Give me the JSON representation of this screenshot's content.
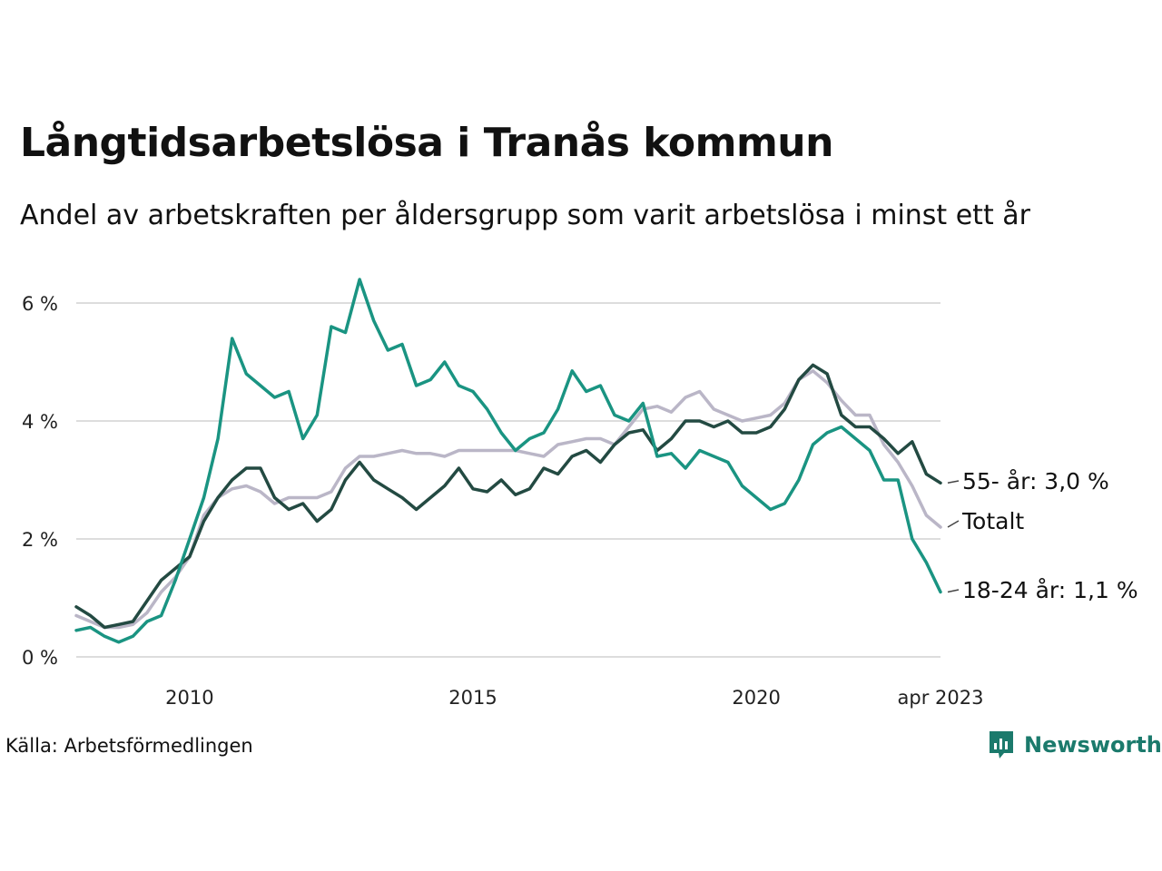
{
  "title": "Långtidsarbetslösa i Tranås kommun",
  "subtitle": "Andel av arbetskraften per åldersgrupp som varit arbetslösa i minst ett år",
  "source": "Källa: Arbetsförmedlingen",
  "brand": {
    "name": "Newsworthy",
    "icon": "newsworthy-logo-icon",
    "color": "#1b7a6c"
  },
  "chart_data": {
    "type": "line",
    "title": "Långtidsarbetslösa i Tranås kommun",
    "subtitle": "Andel av arbetskraften per åldersgrupp som varit arbetslösa i minst ett år",
    "xlabel": "",
    "ylabel": "",
    "x_range": [
      2008.0,
      2023.25
    ],
    "ylim": [
      0,
      6.6
    ],
    "y_ticks": [
      0,
      2,
      4,
      6
    ],
    "y_tick_labels": [
      "0 %",
      "2 %",
      "4 %",
      "6 %"
    ],
    "x_ticks": [
      2010,
      2015,
      2020,
      2023.25
    ],
    "x_tick_labels": [
      "2010",
      "2015",
      "2020",
      "apr 2023"
    ],
    "grid": "horizontal",
    "legend": "direct labels at line ends (right)",
    "series": [
      {
        "name": "55- år",
        "end_label": "55- år: 3,0 %",
        "color": "#234a42",
        "x": [
          2008.0,
          2008.25,
          2008.5,
          2008.75,
          2009.0,
          2009.25,
          2009.5,
          2009.75,
          2010.0,
          2010.25,
          2010.5,
          2010.75,
          2011.0,
          2011.25,
          2011.5,
          2011.75,
          2012.0,
          2012.25,
          2012.5,
          2012.75,
          2013.0,
          2013.25,
          2013.5,
          2013.75,
          2014.0,
          2014.25,
          2014.5,
          2014.75,
          2015.0,
          2015.25,
          2015.5,
          2015.75,
          2016.0,
          2016.25,
          2016.5,
          2016.75,
          2017.0,
          2017.25,
          2017.5,
          2017.75,
          2018.0,
          2018.25,
          2018.5,
          2018.75,
          2019.0,
          2019.25,
          2019.5,
          2019.75,
          2020.0,
          2020.25,
          2020.5,
          2020.75,
          2021.0,
          2021.25,
          2021.5,
          2021.75,
          2022.0,
          2022.25,
          2022.5,
          2022.75,
          2023.0,
          2023.25
        ],
        "values": [
          0.85,
          0.7,
          0.5,
          0.55,
          0.6,
          0.95,
          1.3,
          1.5,
          1.7,
          2.3,
          2.7,
          3.0,
          3.2,
          3.2,
          2.7,
          2.5,
          2.6,
          2.3,
          2.5,
          3.0,
          3.3,
          3.0,
          2.85,
          2.7,
          2.5,
          2.7,
          2.9,
          3.2,
          2.85,
          2.8,
          3.0,
          2.75,
          2.85,
          3.2,
          3.1,
          3.4,
          3.5,
          3.3,
          3.6,
          3.8,
          3.85,
          3.5,
          3.7,
          4.0,
          4.0,
          3.9,
          4.0,
          3.8,
          3.8,
          3.9,
          4.2,
          4.7,
          4.95,
          4.8,
          4.1,
          3.9,
          3.9,
          3.7,
          3.45,
          3.65,
          3.1,
          2.95
        ]
      },
      {
        "name": "Totalt",
        "end_label": "Totalt",
        "color": "#bab6c7",
        "x": [
          2008.0,
          2008.25,
          2008.5,
          2008.75,
          2009.0,
          2009.25,
          2009.5,
          2009.75,
          2010.0,
          2010.25,
          2010.5,
          2010.75,
          2011.0,
          2011.25,
          2011.5,
          2011.75,
          2012.0,
          2012.25,
          2012.5,
          2012.75,
          2013.0,
          2013.25,
          2013.5,
          2013.75,
          2014.0,
          2014.25,
          2014.5,
          2014.75,
          2015.0,
          2015.25,
          2015.5,
          2015.75,
          2016.0,
          2016.25,
          2016.5,
          2016.75,
          2017.0,
          2017.25,
          2017.5,
          2017.75,
          2018.0,
          2018.25,
          2018.5,
          2018.75,
          2019.0,
          2019.25,
          2019.5,
          2019.75,
          2020.0,
          2020.25,
          2020.5,
          2020.75,
          2021.0,
          2021.25,
          2021.5,
          2021.75,
          2022.0,
          2022.25,
          2022.5,
          2022.75,
          2023.0,
          2023.25
        ],
        "values": [
          0.7,
          0.6,
          0.5,
          0.5,
          0.55,
          0.75,
          1.1,
          1.35,
          1.7,
          2.4,
          2.7,
          2.85,
          2.9,
          2.8,
          2.6,
          2.7,
          2.7,
          2.7,
          2.8,
          3.2,
          3.4,
          3.4,
          3.45,
          3.5,
          3.45,
          3.45,
          3.4,
          3.5,
          3.5,
          3.5,
          3.5,
          3.5,
          3.45,
          3.4,
          3.6,
          3.65,
          3.7,
          3.7,
          3.6,
          3.9,
          4.2,
          4.25,
          4.15,
          4.4,
          4.5,
          4.2,
          4.1,
          4.0,
          4.05,
          4.1,
          4.3,
          4.7,
          4.85,
          4.65,
          4.35,
          4.1,
          4.1,
          3.6,
          3.3,
          2.9,
          2.4,
          2.2
        ]
      },
      {
        "name": "18-24 år",
        "end_label": "18-24 år: 1,1 %",
        "color": "#1a9482",
        "x": [
          2008.0,
          2008.25,
          2008.5,
          2008.75,
          2009.0,
          2009.25,
          2009.5,
          2009.75,
          2010.0,
          2010.25,
          2010.5,
          2010.75,
          2011.0,
          2011.25,
          2011.5,
          2011.75,
          2012.0,
          2012.25,
          2012.5,
          2012.75,
          2013.0,
          2013.25,
          2013.5,
          2013.75,
          2014.0,
          2014.25,
          2014.5,
          2014.75,
          2015.0,
          2015.25,
          2015.5,
          2015.75,
          2016.0,
          2016.25,
          2016.5,
          2016.75,
          2017.0,
          2017.25,
          2017.5,
          2017.75,
          2018.0,
          2018.25,
          2018.5,
          2018.75,
          2019.0,
          2019.25,
          2019.5,
          2019.75,
          2020.0,
          2020.25,
          2020.5,
          2020.75,
          2021.0,
          2021.25,
          2021.5,
          2021.75,
          2022.0,
          2022.25,
          2022.5,
          2022.75,
          2023.0,
          2023.25
        ],
        "values": [
          0.45,
          0.5,
          0.35,
          0.25,
          0.35,
          0.6,
          0.7,
          1.3,
          2.0,
          2.7,
          3.7,
          5.4,
          4.8,
          4.6,
          4.4,
          4.5,
          3.7,
          4.1,
          5.6,
          5.5,
          6.4,
          5.7,
          5.2,
          5.3,
          4.6,
          4.7,
          5.0,
          4.6,
          4.5,
          4.2,
          3.8,
          3.5,
          3.7,
          3.8,
          4.2,
          4.85,
          4.5,
          4.6,
          4.1,
          4.0,
          4.3,
          3.4,
          3.45,
          3.2,
          3.5,
          3.4,
          3.3,
          2.9,
          2.7,
          2.5,
          2.6,
          3.0,
          3.6,
          3.8,
          3.9,
          3.7,
          3.5,
          3.0,
          3.0,
          2.0,
          1.6,
          1.1
        ]
      }
    ]
  }
}
